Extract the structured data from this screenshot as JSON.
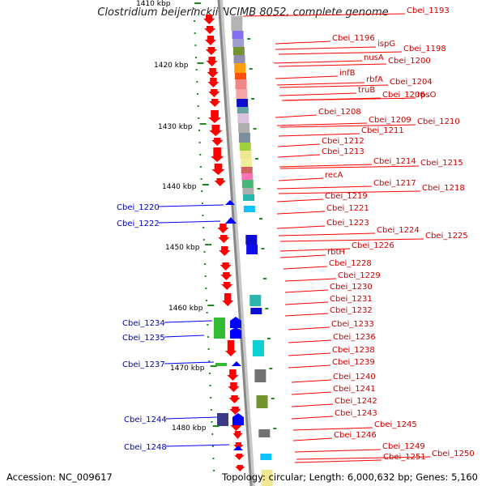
{
  "title": "Clostridium beijerinckii NCIMB 8052, complete genome",
  "accession": "Accession: NC_009617",
  "topology": "Topology: circular; Length: 6,000,632 bp; Genes: 5,160",
  "colors": {
    "forward_gene": "#ff0000",
    "reverse_gene": "#0000ff",
    "forward_label": "#cc0000",
    "reverse_label": "#0000bb",
    "backbone": "#888888",
    "ruler_dot": "#228822"
  },
  "ruler_labels": [
    "1410 kbp",
    "1420 kbp",
    "1430 kbp",
    "1440 kbp",
    "1450 kbp",
    "1460 kbp",
    "1470 kbp",
    "1480 kbp"
  ],
  "forward_labels": [
    "Cbei_1193",
    "Cbei_1196",
    "ispG",
    "Cbei_1198",
    "nusA",
    "Cbei_1200",
    "infB",
    "rbfA",
    "Cbei_1204",
    "truB",
    "Cbei_1206",
    "rpsO",
    "Cbei_1208",
    "Cbei_1209",
    "Cbei_1210",
    "Cbei_1211",
    "Cbei_1212",
    "Cbei_1213",
    "Cbei_1214",
    "Cbei_1215",
    "recA",
    "Cbei_1217",
    "Cbei_1218",
    "Cbei_1219",
    "Cbei_1221",
    "Cbei_1223",
    "Cbei_1224",
    "Cbei_1225",
    "Cbei_1226",
    "rbtH",
    "Cbei_1228",
    "Cbei_1229",
    "Cbei_1230",
    "Cbei_1231",
    "Cbei_1232",
    "Cbei_1233",
    "Cbei_1236",
    "Cbei_1238",
    "Cbei_1239",
    "Cbei_1240",
    "Cbei_1241",
    "Cbei_1242",
    "Cbei_1243",
    "Cbei_1245",
    "Cbei_1246",
    "Cbei_1249",
    "Cbei_1250",
    "Cbei_1251"
  ],
  "reverse_labels": [
    "Cbei_1220",
    "Cbei_1222",
    "Cbei_1234",
    "Cbei_1235",
    "Cbei_1237",
    "Cbei_1244",
    "Cbei_1248"
  ]
}
